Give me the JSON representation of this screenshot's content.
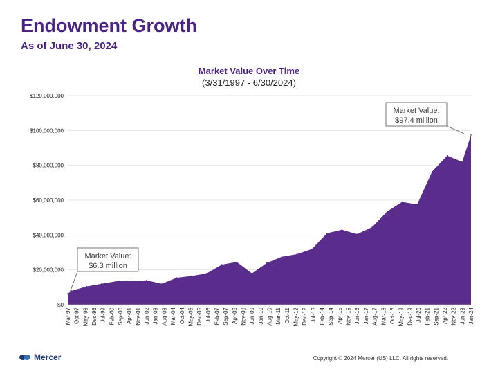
{
  "header": {
    "title": "Endowment Growth",
    "subtitle": "As of June 30, 2024"
  },
  "footer": {
    "brand": "Mercer",
    "copyright": "Copyright © 2024 Mercer (US) LLC. All rights reserved."
  },
  "colors": {
    "accent": "#4b2384",
    "area": "#5a2d8c"
  },
  "chart_data": {
    "type": "area",
    "title": "Market Value Over Time",
    "subtitle": "(3/31/1997 - 6/30/2024)",
    "xlabel": "",
    "ylabel": "",
    "ylim": [
      0,
      120000000
    ],
    "yticks": [
      "$0",
      "$20,000,000",
      "$40,000,000",
      "$60,000,000",
      "$80,000,000",
      "$100,000,000",
      "$120,000,000"
    ],
    "grid": true,
    "categories": [
      "Mar-97",
      "Oct-97",
      "May-98",
      "Dec-98",
      "Jul-99",
      "Feb-00",
      "Sep-00",
      "Apr-01",
      "Nov-01",
      "Jun-02",
      "Jan-03",
      "Aug-03",
      "Mar-04",
      "Oct-04",
      "May-05",
      "Dec-05",
      "Jul-06",
      "Feb-07",
      "Sep-07",
      "Apr-08",
      "Nov-08",
      "Jun-09",
      "Jan-10",
      "Aug-10",
      "Mar-11",
      "Oct-11",
      "May-12",
      "Dec-12",
      "Jul-13",
      "Feb-14",
      "Sep-14",
      "Apr-15",
      "Nov-15",
      "Jun-16",
      "Jan-17",
      "Aug-17",
      "Mar-18",
      "Oct-18",
      "May-19",
      "Dec-19",
      "Jul-20",
      "Feb-21",
      "Sep-21",
      "Apr-22",
      "Nov-22",
      "Jun-23",
      "Jan-24"
    ],
    "series": [
      {
        "x": [
          "Mar-97",
          "Jun-97",
          "Jun-98",
          "Jun-99",
          "Jun-00",
          "Jun-01",
          "Jun-02",
          "Jun-03",
          "Jun-04",
          "Jun-05",
          "Jun-06",
          "Jun-07",
          "Jun-08",
          "Jun-09",
          "Jun-10",
          "Jun-11",
          "Jun-12",
          "Jun-13",
          "Jun-14",
          "Jun-15",
          "Jun-16",
          "Jun-17",
          "Jun-18",
          "Jun-19",
          "Jun-20",
          "Jun-21",
          "Jun-22",
          "Jun-23",
          "Jun-24"
        ],
        "values": [
          6300000,
          8000000,
          10500000,
          12000000,
          13500000,
          13500000,
          14000000,
          12000000,
          15500000,
          16500000,
          18000000,
          23000000,
          24500000,
          18000000,
          24000000,
          27500000,
          29000000,
          32000000,
          41000000,
          43000000,
          40500000,
          44500000,
          53500000,
          59000000,
          57500000,
          76500000,
          85500000,
          82000000,
          97400000
        ]
      }
    ],
    "annotations": [
      {
        "label": "Market Value:",
        "value": "$6.3 million"
      },
      {
        "label": "Market Value:",
        "value": "$97.4 million"
      }
    ]
  }
}
